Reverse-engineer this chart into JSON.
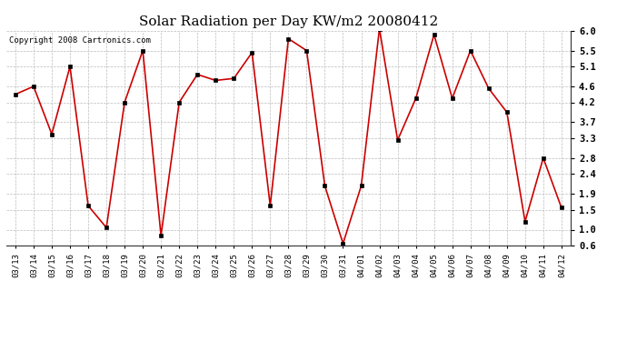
{
  "title": "Solar Radiation per Day KW/m2 20080412",
  "copyright_text": "Copyright 2008 Cartronics.com",
  "dates": [
    "03/13",
    "03/14",
    "03/15",
    "03/16",
    "03/17",
    "03/18",
    "03/19",
    "03/20",
    "03/21",
    "03/22",
    "03/23",
    "03/24",
    "03/25",
    "03/26",
    "03/27",
    "03/28",
    "03/29",
    "03/30",
    "03/31",
    "04/01",
    "04/02",
    "04/03",
    "04/04",
    "04/05",
    "04/06",
    "04/07",
    "04/08",
    "04/09",
    "04/10",
    "04/11",
    "04/12"
  ],
  "values": [
    4.4,
    4.6,
    3.4,
    5.1,
    1.6,
    1.05,
    4.2,
    5.5,
    0.85,
    4.2,
    4.9,
    4.75,
    4.8,
    5.45,
    1.6,
    5.8,
    5.5,
    2.1,
    0.65,
    2.1,
    6.05,
    3.25,
    4.3,
    5.9,
    4.3,
    5.5,
    4.55,
    3.95,
    1.2,
    2.8,
    1.55
  ],
  "line_color": "#cc0000",
  "marker_color": "#000000",
  "bg_color": "#ffffff",
  "grid_color": "#bbbbbb",
  "ylim": [
    0.6,
    6.0
  ],
  "yticks": [
    0.6,
    1.0,
    1.5,
    1.9,
    2.4,
    2.8,
    3.3,
    3.7,
    4.2,
    4.6,
    5.1,
    5.5,
    6.0
  ],
  "title_fontsize": 11,
  "copyright_fontsize": 6.5,
  "tick_fontsize": 6.5,
  "ytick_fontsize": 7.5
}
